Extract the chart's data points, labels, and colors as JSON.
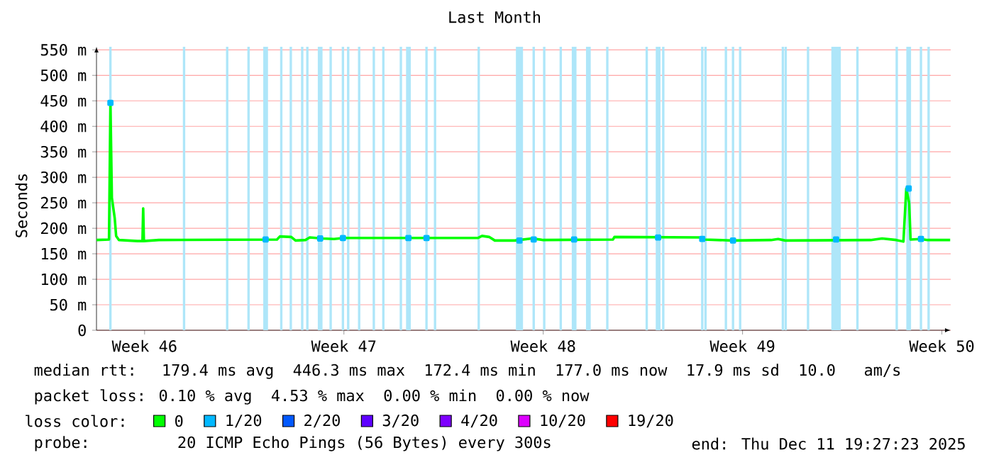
{
  "chart_data": {
    "type": "line",
    "title": "Last Month",
    "ylabel": "Seconds",
    "xlim": [
      "2025-11-11T19:27",
      "2025-12-11T19:27"
    ],
    "xticks": [
      {
        "value": "2025-11-13T12:00",
        "label": "Week 46"
      },
      {
        "value": "2025-11-20T12:00",
        "label": "Week 47"
      },
      {
        "value": "2025-11-27T12:00",
        "label": "Week 48"
      },
      {
        "value": "2025-12-04T12:00",
        "label": "Week 49"
      },
      {
        "value": "2025-12-11T12:00",
        "label": "Week 50"
      }
    ],
    "ylim": [
      0,
      556
    ],
    "yticks": [
      0,
      {
        "value": 50,
        "label": "50 m"
      },
      {
        "value": 100,
        "label": "100 m"
      },
      {
        "value": 150,
        "label": "150 m"
      },
      {
        "value": 200,
        "label": "200 m"
      },
      {
        "value": 250,
        "label": "250 m"
      },
      {
        "value": 300,
        "label": "300 m"
      },
      {
        "value": 350,
        "label": "350 m"
      },
      {
        "value": 400,
        "label": "400 m"
      },
      {
        "value": 450,
        "label": "450 m"
      },
      {
        "value": 500,
        "label": "500 m"
      },
      {
        "value": 550,
        "label": "550 m"
      }
    ],
    "grid": "y",
    "legend": "bottom",
    "legend_title": "loss color:",
    "x": [
      "2025-11-11T19:30",
      "2025-11-12T06:00",
      "2025-11-12T07:12",
      "2025-11-12T08:24",
      "2025-11-12T10:48",
      "2025-11-12T12:00",
      "2025-11-12T14:24",
      "2025-11-13T06:00",
      "2025-11-13T10:12",
      "2025-11-13T10:48",
      "2025-11-13T11:24",
      "2025-11-14T00:00",
      "2025-11-18T03:36",
      "2025-11-18T06:00",
      "2025-11-18T15:36",
      "2025-11-18T19:12",
      "2025-11-19T03:36",
      "2025-11-19T07:12",
      "2025-11-19T18:00",
      "2025-11-20T03:36",
      "2025-11-20T12:00",
      "2025-11-25T04:48",
      "2025-11-25T08:24",
      "2025-11-25T14:24",
      "2025-11-25T19:12",
      "2025-11-26T12:00",
      "2025-11-27T02:24",
      "2025-11-27T12:00",
      "2025-11-29T22:48",
      "2025-11-30T00:00",
      "2025-12-03T00:00",
      "2025-12-03T03:36",
      "2025-12-04T03:36",
      "2025-12-05T12:00",
      "2025-12-05T18:00",
      "2025-12-06T00:00",
      "2025-12-09T00:00",
      "2025-12-09T09:36",
      "2025-12-09T21:36",
      "2025-12-10T03:36",
      "2025-12-10T06:00",
      "2025-12-10T08:24",
      "2025-12-10T09:36",
      "2025-12-10T18:00",
      "2025-12-11T00:00",
      "2025-12-11T19:00"
    ],
    "series": [
      {
        "name": "0",
        "color": "#00ff00",
        "values": [
          177,
          178,
          446,
          260,
          220,
          185,
          177,
          175,
          175,
          239,
          175,
          177,
          178,
          184,
          183,
          176,
          177,
          182,
          180,
          179,
          181,
          181,
          185,
          183,
          176,
          176,
          180,
          177,
          178,
          183,
          182,
          178,
          176,
          177,
          179,
          176,
          177,
          180,
          177,
          174,
          278,
          250,
          178,
          179,
          177,
          177
        ]
      },
      {
        "name": "1/20",
        "color": "#00b8ff",
        "type": "scatter",
        "marker": "square",
        "x": [
          "2025-11-12T07:12",
          "2025-11-17T18:00",
          "2025-11-19T15:58",
          "2025-11-20T11:10",
          "2025-11-22T18:22",
          "2025-11-23T09:36",
          "2025-11-26T15:58",
          "2025-11-27T03:58",
          "2025-11-28T14:02",
          "2025-12-01T12:50",
          "2025-12-03T02:02",
          "2025-12-04T03:58",
          "2025-12-07T18:50",
          "2025-12-10T08:02",
          "2025-12-10T18:22"
        ],
        "values": [
          446,
          178,
          180,
          181,
          181,
          181,
          176,
          178,
          178,
          182,
          179,
          176,
          178,
          278,
          179
        ]
      },
      {
        "name": "2/20",
        "color": "#0059ff",
        "values": [
          null,
          null,
          null,
          null,
          null,
          null,
          null,
          null,
          null,
          null,
          null,
          null,
          null,
          null,
          null,
          null,
          null,
          null,
          null,
          null,
          null,
          null,
          null,
          null,
          null,
          null,
          null,
          null,
          null,
          null,
          null,
          null,
          null,
          null,
          null,
          null,
          null,
          null,
          null,
          null,
          null,
          null,
          null,
          null,
          null,
          null
        ]
      },
      {
        "name": "3/20",
        "color": "#5e00ff",
        "values": [
          null,
          null,
          null,
          null,
          null,
          null,
          null,
          null,
          null,
          null,
          null,
          null,
          null,
          null,
          null,
          null,
          null,
          null,
          null,
          null,
          null,
          null,
          null,
          null,
          null,
          null,
          null,
          null,
          null,
          null,
          null,
          null,
          null,
          null,
          null,
          null,
          null,
          null,
          null,
          null,
          null,
          null,
          null,
          null,
          null,
          null
        ]
      },
      {
        "name": "4/20",
        "color": "#7e00ff",
        "values": [
          null,
          null,
          null,
          null,
          null,
          null,
          null,
          null,
          null,
          null,
          null,
          null,
          null,
          null,
          null,
          null,
          null,
          null,
          null,
          null,
          null,
          null,
          null,
          null,
          null,
          null,
          null,
          null,
          null,
          null,
          null,
          null,
          null,
          null,
          null,
          null,
          null,
          null,
          null,
          null,
          null,
          null,
          null,
          null,
          null,
          null
        ]
      },
      {
        "name": "10/20",
        "color": "#dd00ff",
        "values": [
          null,
          null,
          null,
          null,
          null,
          null,
          null,
          null,
          null,
          null,
          null,
          null,
          null,
          null,
          null,
          null,
          null,
          null,
          null,
          null,
          null,
          null,
          null,
          null,
          null,
          null,
          null,
          null,
          null,
          null,
          null,
          null,
          null,
          null,
          null,
          null,
          null,
          null,
          null,
          null,
          null,
          null,
          null,
          null,
          null,
          null
        ]
      },
      {
        "name": "19/20",
        "color": "#ff0000",
        "values": [
          null,
          null,
          null,
          null,
          null,
          null,
          null,
          null,
          null,
          null,
          null,
          null,
          null,
          null,
          null,
          null,
          null,
          null,
          null,
          null,
          null,
          null,
          null,
          null,
          null,
          null,
          null,
          null,
          null,
          null,
          null,
          null,
          null,
          null,
          null,
          null,
          null,
          null,
          null,
          null,
          null,
          null,
          null,
          null,
          null,
          null
        ]
      }
    ],
    "bands": [
      {
        "axis": "x",
        "from": "2025-11-12T06:12",
        "to": "2025-11-12T08:12",
        "color": "#aee6f9"
      },
      {
        "axis": "x",
        "from": "2025-11-14T20:15",
        "to": "2025-11-14T22:15",
        "color": "#aee6f9"
      },
      {
        "axis": "x",
        "from": "2025-11-16T08:36",
        "to": "2025-11-16T10:36",
        "color": "#aee6f9"
      },
      {
        "axis": "x",
        "from": "2025-11-17T02:36",
        "to": "2025-11-17T04:36",
        "color": "#aee6f9"
      },
      {
        "axis": "x",
        "from": "2025-11-17T16:00",
        "to": "2025-11-17T20:00",
        "color": "#aee6f9"
      },
      {
        "axis": "x",
        "from": "2025-11-18T06:12",
        "to": "2025-11-18T08:12",
        "color": "#aee6f9"
      },
      {
        "axis": "x",
        "from": "2025-11-18T14:14",
        "to": "2025-11-18T16:14",
        "color": "#aee6f9"
      },
      {
        "axis": "x",
        "from": "2025-11-18T23:50",
        "to": "2025-11-19T01:50",
        "color": "#aee6f9"
      },
      {
        "axis": "x",
        "from": "2025-11-19T04:10",
        "to": "2025-11-19T06:10",
        "color": "#aee6f9"
      },
      {
        "axis": "x",
        "from": "2025-11-19T13:58",
        "to": "2025-11-19T17:58",
        "color": "#aee6f9"
      },
      {
        "axis": "x",
        "from": "2025-11-19T23:50",
        "to": "2025-11-20T01:50",
        "color": "#aee6f9"
      },
      {
        "axis": "x",
        "from": "2025-11-20T10:10",
        "to": "2025-11-20T12:10",
        "color": "#aee6f9"
      },
      {
        "axis": "x",
        "from": "2025-11-20T14:36",
        "to": "2025-11-20T16:36",
        "color": "#aee6f9"
      },
      {
        "axis": "x",
        "from": "2025-11-20T23:50",
        "to": "2025-11-21T01:50",
        "color": "#aee6f9"
      },
      {
        "axis": "x",
        "from": "2025-11-21T12:12",
        "to": "2025-11-21T14:12",
        "color": "#aee6f9"
      },
      {
        "axis": "x",
        "from": "2025-11-21T20:14",
        "to": "2025-11-21T22:14",
        "color": "#aee6f9"
      },
      {
        "axis": "x",
        "from": "2025-11-22T11:00",
        "to": "2025-11-22T13:00",
        "color": "#aee6f9"
      },
      {
        "axis": "x",
        "from": "2025-11-22T16:22",
        "to": "2025-11-22T20:22",
        "color": "#aee6f9"
      },
      {
        "axis": "x",
        "from": "2025-11-23T08:36",
        "to": "2025-11-23T10:36",
        "color": "#aee6f9"
      },
      {
        "axis": "x",
        "from": "2025-11-23T15:48",
        "to": "2025-11-23T17:48",
        "color": "#aee6f9"
      },
      {
        "axis": "x",
        "from": "2025-11-25T04:38",
        "to": "2025-11-25T06:38",
        "color": "#aee6f9"
      },
      {
        "axis": "x",
        "from": "2025-11-26T12:58",
        "to": "2025-11-26T18:58",
        "color": "#aee6f9"
      },
      {
        "axis": "x",
        "from": "2025-11-27T02:58",
        "to": "2025-11-27T04:58",
        "color": "#aee6f9"
      },
      {
        "axis": "x",
        "from": "2025-11-27T11:50",
        "to": "2025-11-27T13:50",
        "color": "#aee6f9"
      },
      {
        "axis": "x",
        "from": "2025-11-28T01:46",
        "to": "2025-11-28T03:46",
        "color": "#aee6f9"
      },
      {
        "axis": "x",
        "from": "2025-11-28T12:02",
        "to": "2025-11-28T16:02",
        "color": "#aee6f9"
      },
      {
        "axis": "x",
        "from": "2025-11-29T00:02",
        "to": "2025-11-29T04:02",
        "color": "#aee6f9"
      },
      {
        "axis": "x",
        "from": "2025-11-29T17:00",
        "to": "2025-11-29T19:00",
        "color": "#aee6f9"
      },
      {
        "axis": "x",
        "from": "2025-12-01T02:14",
        "to": "2025-12-01T04:14",
        "color": "#aee6f9"
      },
      {
        "axis": "x",
        "from": "2025-12-01T10:50",
        "to": "2025-12-01T14:50",
        "color": "#aee6f9"
      },
      {
        "axis": "x",
        "from": "2025-12-01T16:10",
        "to": "2025-12-01T18:10",
        "color": "#aee6f9"
      },
      {
        "axis": "x",
        "from": "2025-12-03T01:02",
        "to": "2025-12-03T03:02",
        "color": "#aee6f9"
      },
      {
        "axis": "x",
        "from": "2025-12-03T03:48",
        "to": "2025-12-03T05:48",
        "color": "#aee6f9"
      },
      {
        "axis": "x",
        "from": "2025-12-03T20:58",
        "to": "2025-12-03T22:58",
        "color": "#aee6f9"
      },
      {
        "axis": "x",
        "from": "2025-12-04T02:58",
        "to": "2025-12-04T04:58",
        "color": "#aee6f9"
      },
      {
        "axis": "x",
        "from": "2025-12-04T08:58",
        "to": "2025-12-04T10:58",
        "color": "#aee6f9"
      },
      {
        "axis": "x",
        "from": "2025-12-05T20:58",
        "to": "2025-12-05T22:58",
        "color": "#aee6f9"
      },
      {
        "axis": "x",
        "from": "2025-12-05T23:22",
        "to": "2025-12-06T01:22",
        "color": "#aee6f9"
      },
      {
        "axis": "x",
        "from": "2025-12-06T18:12",
        "to": "2025-12-06T20:12",
        "color": "#aee6f9"
      },
      {
        "axis": "x",
        "from": "2025-12-07T14:50",
        "to": "2025-12-07T22:50",
        "color": "#aee6f9"
      },
      {
        "axis": "x",
        "from": "2025-12-08T11:50",
        "to": "2025-12-08T13:50",
        "color": "#aee6f9"
      },
      {
        "axis": "x",
        "from": "2025-12-09T20:58",
        "to": "2025-12-09T22:58",
        "color": "#aee6f9"
      },
      {
        "axis": "x",
        "from": "2025-12-10T06:02",
        "to": "2025-12-10T10:02",
        "color": "#aee6f9"
      },
      {
        "axis": "x",
        "from": "2025-12-10T17:22",
        "to": "2025-12-10T19:22",
        "color": "#aee6f9"
      },
      {
        "axis": "x",
        "from": "2025-12-10T23:50",
        "to": "2025-12-11T01:50",
        "color": "#aee6f9"
      }
    ],
    "annotations": [
      "median rtt:  179.4 ms avg  446.3 ms max  172.4 ms min  177.0 ms now  17.9 ms sd  10.0   am/s",
      "packet loss: 0.10 % avg  4.53 % max  0.00 % min  0.00 % now",
      "probe:       20 ICMP Echo Pings (56 Bytes) every 300s",
      "end: Thu Dec 11 19:27:23 2025"
    ]
  }
}
